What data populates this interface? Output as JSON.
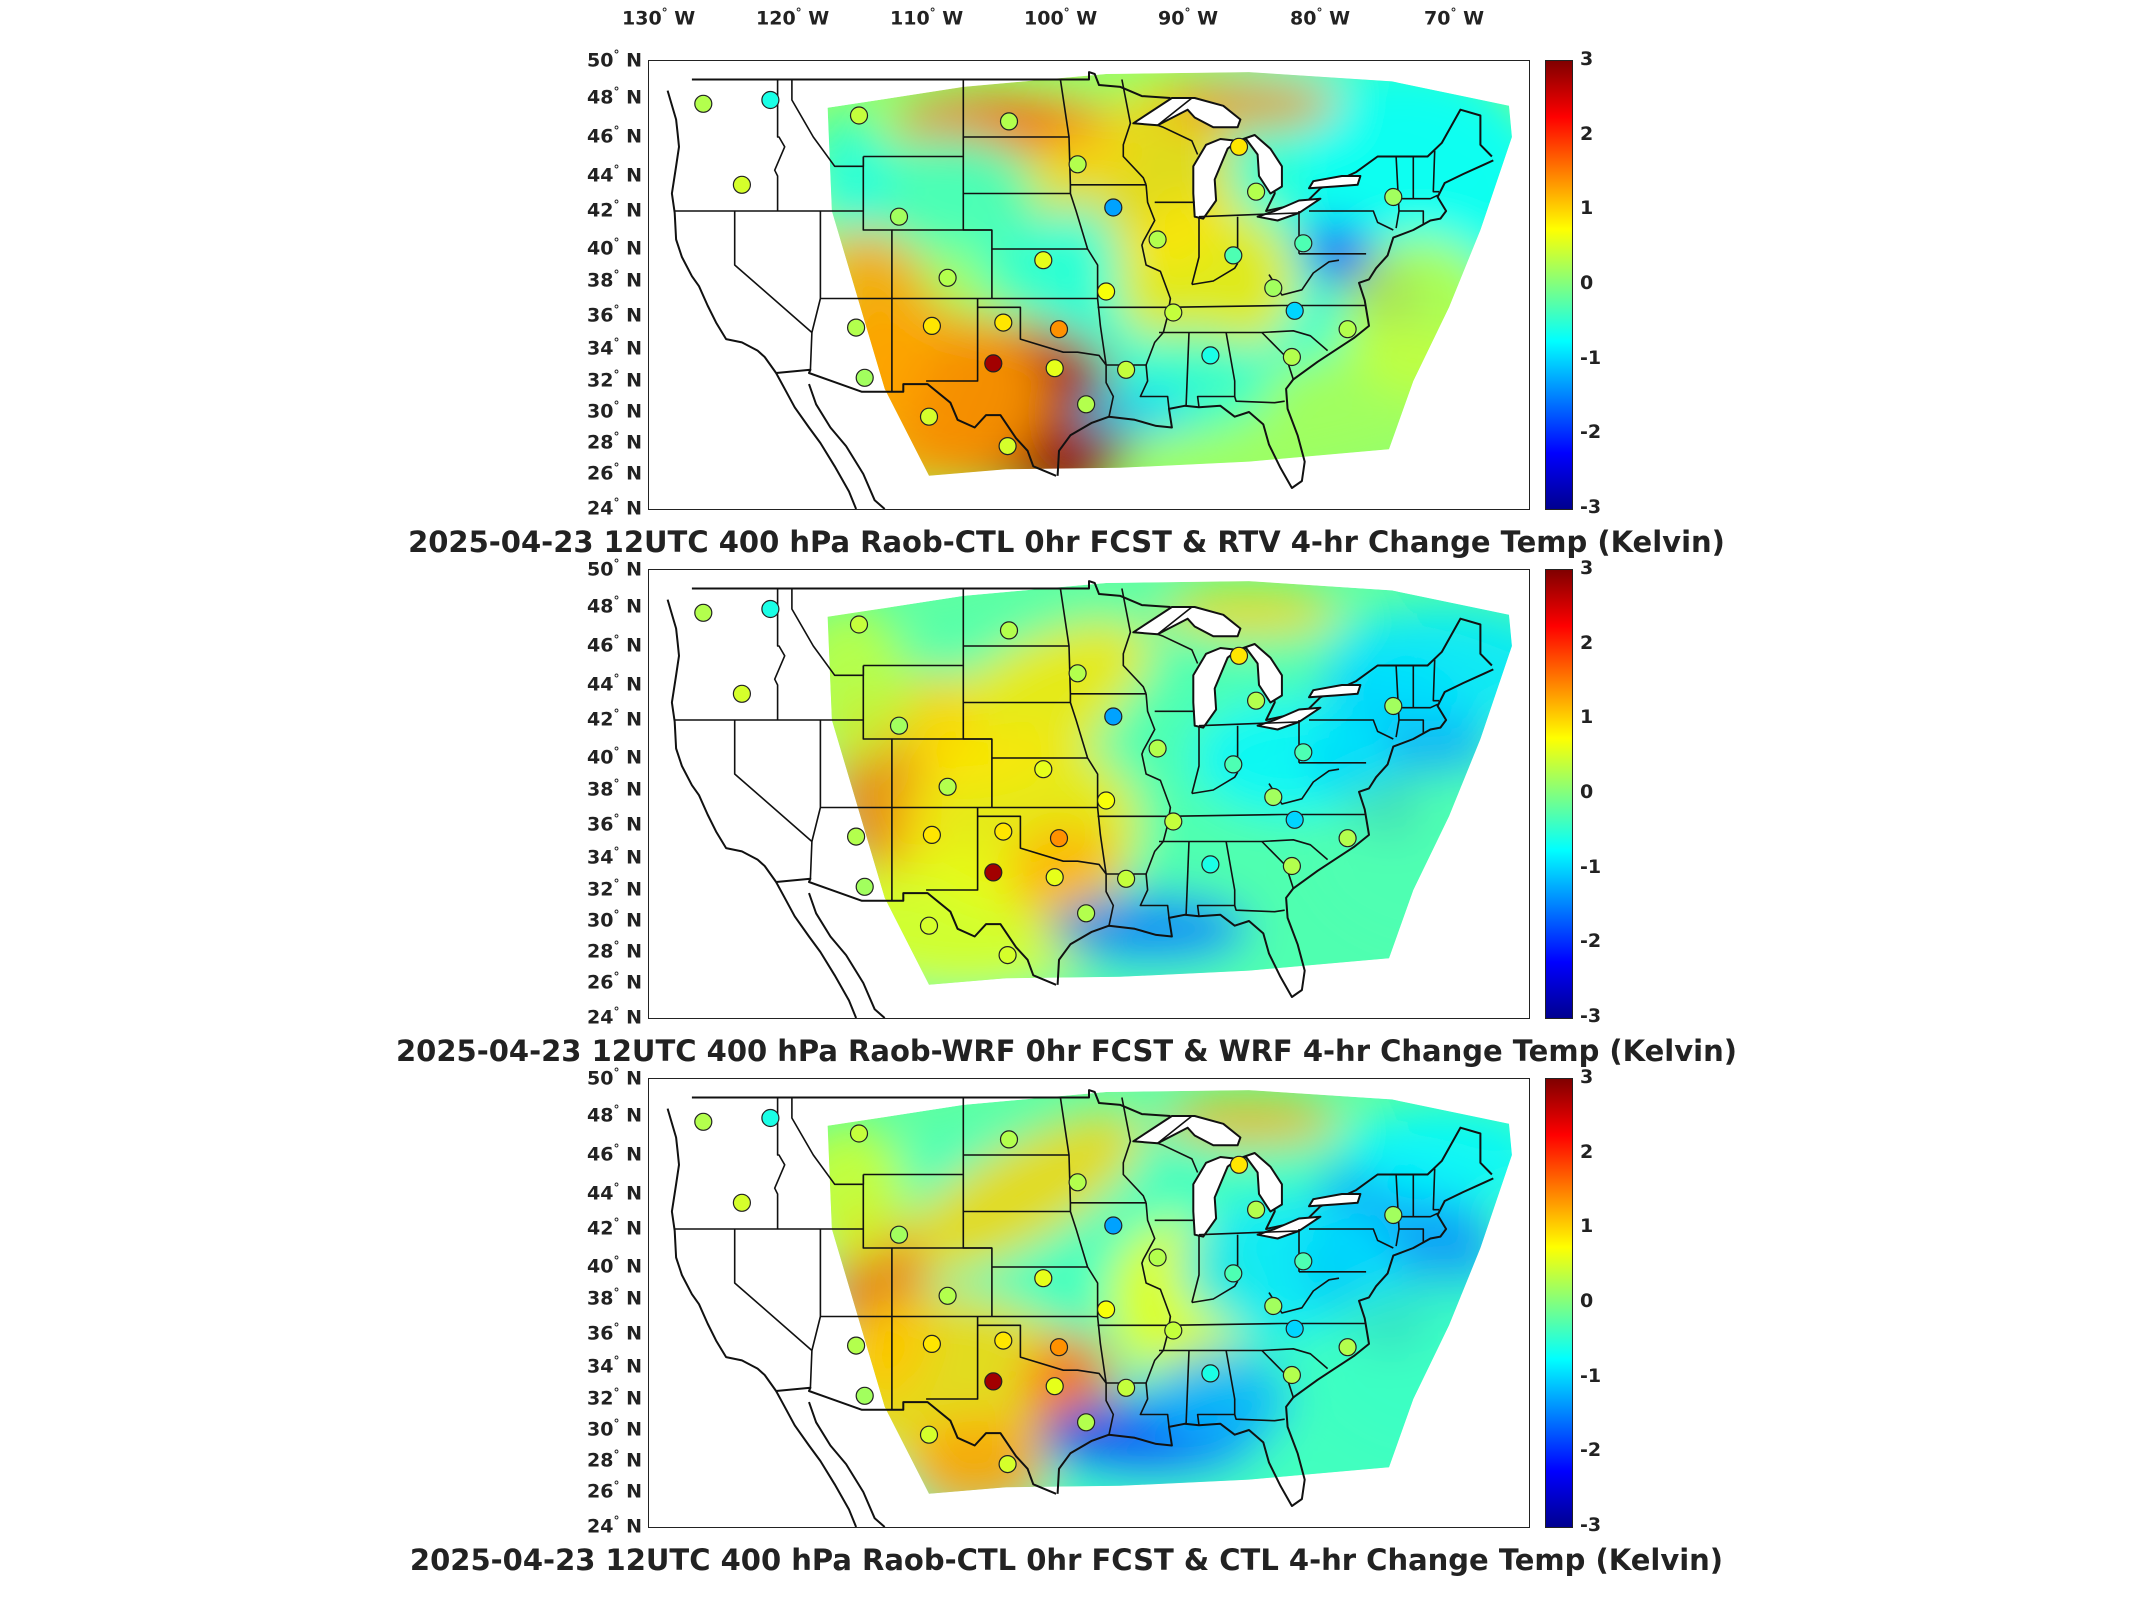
{
  "lon_labels": [
    {
      "value": "130",
      "unit": "W"
    },
    {
      "value": "120",
      "unit": "W"
    },
    {
      "value": "110",
      "unit": "W"
    },
    {
      "value": "100",
      "unit": "W"
    },
    {
      "value": "90",
      "unit": "W"
    },
    {
      "value": "80",
      "unit": "W"
    },
    {
      "value": "70",
      "unit": "W"
    }
  ],
  "lat_labels": [
    {
      "value": "50",
      "unit": "N"
    },
    {
      "value": "48",
      "unit": "N"
    },
    {
      "value": "46",
      "unit": "N"
    },
    {
      "value": "44",
      "unit": "N"
    },
    {
      "value": "42",
      "unit": "N"
    },
    {
      "value": "40",
      "unit": "N"
    },
    {
      "value": "38",
      "unit": "N"
    },
    {
      "value": "36",
      "unit": "N"
    },
    {
      "value": "34",
      "unit": "N"
    },
    {
      "value": "32",
      "unit": "N"
    },
    {
      "value": "30",
      "unit": "N"
    },
    {
      "value": "28",
      "unit": "N"
    },
    {
      "value": "26",
      "unit": "N"
    },
    {
      "value": "24",
      "unit": "N"
    }
  ],
  "colorbar": {
    "ticks": [
      "3",
      "2",
      "1",
      "0",
      "-1",
      "-2",
      "-3"
    ],
    "range": [
      -3,
      3
    ],
    "colormap": [
      "#00008f",
      "#0000ff",
      "#0080ff",
      "#00ffff",
      "#80ff80",
      "#ffff00",
      "#ff8000",
      "#ff0000",
      "#800000"
    ]
  },
  "panels": [
    {
      "title": "2025-04-23 12UTC 400 hPa Raob-CTL 0hr FCST & RTV 4-hr Change Temp (Kelvin)",
      "field_style": "rtv"
    },
    {
      "title": "2025-04-23 12UTC 400 hPa Raob-WRF 0hr FCST & WRF 4-hr Change Temp (Kelvin)",
      "field_style": "wrf"
    },
    {
      "title": "2025-04-23 12UTC 400 hPa Raob-CTL 0hr FCST & CTL 4-hr Change Temp (Kelvin)",
      "field_style": "ctl"
    }
  ],
  "stations": [
    {
      "lon": -122.2,
      "lat": 47.7,
      "value": 0.3
    },
    {
      "lon": -117.5,
      "lat": 47.9,
      "value": -0.6
    },
    {
      "lon": -111.3,
      "lat": 47.1,
      "value": 0.4
    },
    {
      "lon": -100.8,
      "lat": 46.8,
      "value": 0.3
    },
    {
      "lon": -119.5,
      "lat": 43.5,
      "value": 0.5
    },
    {
      "lon": -108.5,
      "lat": 41.7,
      "value": 0.2
    },
    {
      "lon": -96.0,
      "lat": 44.6,
      "value": 0.3
    },
    {
      "lon": -93.5,
      "lat": 42.2,
      "value": -1.3
    },
    {
      "lon": -84.7,
      "lat": 45.5,
      "value": 0.9
    },
    {
      "lon": -83.5,
      "lat": 43.1,
      "value": 0.3
    },
    {
      "lon": -73.9,
      "lat": 42.8,
      "value": 0.2
    },
    {
      "lon": -90.4,
      "lat": 40.5,
      "value": 0.3
    },
    {
      "lon": -85.1,
      "lat": 39.6,
      "value": -0.3
    },
    {
      "lon": -80.2,
      "lat": 40.3,
      "value": -0.3
    },
    {
      "lon": -105.1,
      "lat": 38.2,
      "value": 0.3
    },
    {
      "lon": -98.4,
      "lat": 39.3,
      "value": 0.6
    },
    {
      "lon": -94.0,
      "lat": 37.4,
      "value": 0.7
    },
    {
      "lon": -89.3,
      "lat": 36.2,
      "value": 0.4
    },
    {
      "lon": -82.3,
      "lat": 37.6,
      "value": 0.2
    },
    {
      "lon": -80.8,
      "lat": 36.3,
      "value": -1.0
    },
    {
      "lon": -77.1,
      "lat": 35.2,
      "value": 0.3
    },
    {
      "lon": -111.5,
      "lat": 35.3,
      "value": 0.3
    },
    {
      "lon": -106.2,
      "lat": 35.4,
      "value": 0.9
    },
    {
      "lon": -101.2,
      "lat": 35.6,
      "value": 0.9
    },
    {
      "lon": -97.3,
      "lat": 35.2,
      "value": 1.4
    },
    {
      "lon": -101.9,
      "lat": 33.1,
      "value": 2.8
    },
    {
      "lon": -97.6,
      "lat": 32.8,
      "value": 0.6
    },
    {
      "lon": -92.6,
      "lat": 32.7,
      "value": 0.4
    },
    {
      "lon": -86.7,
      "lat": 33.6,
      "value": -0.6
    },
    {
      "lon": -81.0,
      "lat": 33.5,
      "value": 0.3
    },
    {
      "lon": -110.9,
      "lat": 32.2,
      "value": 0.2
    },
    {
      "lon": -106.4,
      "lat": 29.7,
      "value": 0.5
    },
    {
      "lon": -100.9,
      "lat": 27.8,
      "value": 0.5
    },
    {
      "lon": -95.4,
      "lat": 30.5,
      "value": 0.3
    }
  ]
}
